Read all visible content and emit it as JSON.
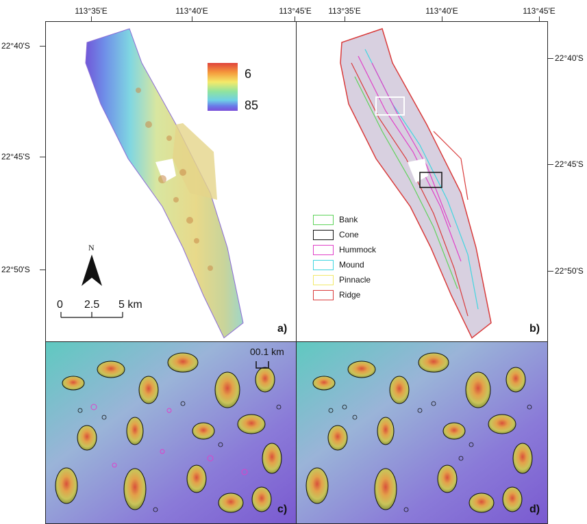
{
  "top_axis": {
    "panel_a": [
      "113°35'E",
      "113°40'E",
      "113°45'E"
    ],
    "panel_b": [
      "113°35'E",
      "113°40'E",
      "113°45'E"
    ]
  },
  "left_axis": [
    "22°40'S",
    "22°45'S",
    "22°50'S"
  ],
  "right_axis": [
    "22°40'S",
    "22°45'S",
    "22°50'S"
  ],
  "depth_legend": {
    "min": "6",
    "max": "85",
    "colors": [
      "#e0433b",
      "#f59a3c",
      "#f4ea6a",
      "#8ee3a0",
      "#6fd0e6",
      "#6a7ae8",
      "#7b4fd8"
    ]
  },
  "north_arrow": {
    "label": "N"
  },
  "scale_bar": {
    "labels": [
      "0",
      "2.5",
      "5 km"
    ]
  },
  "scale_bar_inset": {
    "label": "00.1 km"
  },
  "class_legend": {
    "items": [
      {
        "label": "Bank",
        "color": "#5fd35a"
      },
      {
        "label": "Cone",
        "color": "#111111"
      },
      {
        "label": "Hummock",
        "color": "#e040c8"
      },
      {
        "label": "Mound",
        "color": "#3fd6e0"
      },
      {
        "label": "Pinnacle",
        "color": "#f2e96a"
      },
      {
        "label": "Ridge",
        "color": "#d93a3a"
      }
    ]
  },
  "panel_labels": {
    "a": "a)",
    "b": "b)",
    "c": "c)",
    "d": "d)"
  }
}
